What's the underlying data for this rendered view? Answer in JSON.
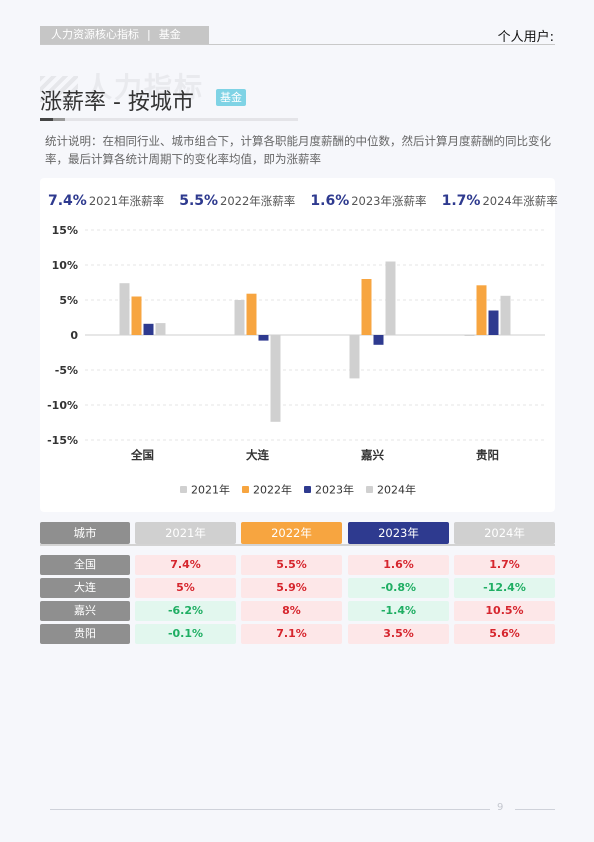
{
  "header": {
    "category": "人力资源核心指标",
    "subcategory": "基金",
    "user_label": "个人用户:"
  },
  "watermark": "人力指标",
  "title": "涨薪率 - 按城市",
  "badge": "基金",
  "description": "统计说明：在相同行业、城市组合下，计算各职能月度薪酬的中位数，然后计算月度薪酬的同比变化率，最后计算各统计周期下的变化率均值，即为涨薪率",
  "summary": [
    {
      "value": "7.4%",
      "label": "2021年涨薪率"
    },
    {
      "value": "5.5%",
      "label": "2022年涨薪率"
    },
    {
      "value": "1.6%",
      "label": "2023年涨薪率"
    },
    {
      "value": "1.7%",
      "label": "2024年涨薪率"
    }
  ],
  "chart_data": {
    "type": "bar",
    "categories": [
      "全国",
      "大连",
      "嘉兴",
      "贵阳"
    ],
    "series": [
      {
        "name": "2021年",
        "color": "#d0d0d0",
        "values": [
          7.4,
          5.0,
          -6.2,
          -0.1
        ]
      },
      {
        "name": "2022年",
        "color": "#f7a540",
        "values": [
          5.5,
          5.9,
          8.0,
          7.1
        ]
      },
      {
        "name": "2023年",
        "color": "#2e3a8f",
        "values": [
          1.6,
          -0.8,
          -1.4,
          3.5
        ]
      },
      {
        "name": "2024年",
        "color": "#d0d0d0",
        "values": [
          1.7,
          -12.4,
          10.5,
          5.6
        ]
      }
    ],
    "yticks": [
      "15%",
      "10%",
      "5%",
      "0",
      "-5%",
      "-10%",
      "-15%"
    ],
    "ylim": [
      -15,
      15
    ],
    "grid": true,
    "legend": "bottom"
  },
  "table": {
    "corner": "城市",
    "columns": [
      {
        "label": "2021年",
        "color": "#d0d0d0"
      },
      {
        "label": "2022年",
        "color": "#f7a540"
      },
      {
        "label": "2023年",
        "color": "#2e3a8f"
      },
      {
        "label": "2024年",
        "color": "#d0d0d0"
      }
    ],
    "rows": [
      {
        "city": "全国",
        "values": [
          "7.4%",
          "5.5%",
          "1.6%",
          "1.7%"
        ]
      },
      {
        "city": "大连",
        "values": [
          "5%",
          "5.9%",
          "-0.8%",
          "-12.4%"
        ]
      },
      {
        "city": "嘉兴",
        "values": [
          "-6.2%",
          "8%",
          "-1.4%",
          "10.5%"
        ]
      },
      {
        "city": "贵阳",
        "values": [
          "-0.1%",
          "7.1%",
          "3.5%",
          "5.6%"
        ]
      }
    ]
  },
  "footer": {
    "page": "9"
  }
}
